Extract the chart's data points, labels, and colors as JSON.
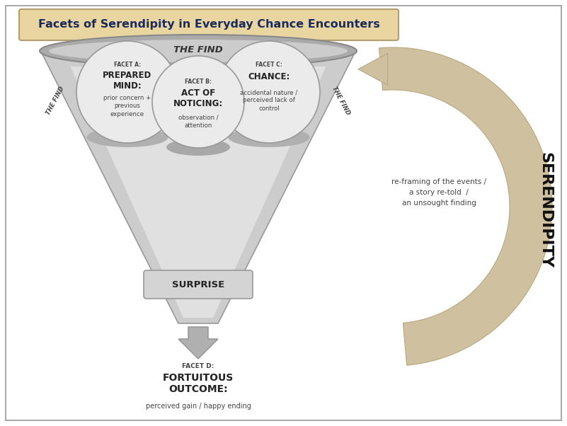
{
  "title": "Facets of Serendipity in Everyday Chance Encounters",
  "title_color": "#1a2a5e",
  "title_bg_color": "#e8d5a0",
  "title_border_color": "#b0a070",
  "background_color": "#ffffff",
  "funnel_outer_color": "#bbbbbb",
  "funnel_mid_color": "#cccccc",
  "funnel_inner_color": "#d8d8d8",
  "funnel_light_color": "#e0e0e0",
  "ellipse_rim_color": "#aaaaaa",
  "ellipse_rim_light": "#cccccc",
  "circle_face_color": "#ebebeb",
  "circle_edge_color": "#999999",
  "bump_color": "#b0b0b0",
  "surprise_face": "#d4d4d4",
  "surprise_edge": "#999999",
  "arrow_down_face": "#b0b0b0",
  "arrow_down_edge": "#909090",
  "arc_face": "#cfc0a0",
  "arc_edge": "#b8a880",
  "serendipity_color": "#111111",
  "text_dark": "#222222",
  "text_mid": "#444444",
  "border_color": "#aaaaaa",
  "the_find_text": "THE FIND",
  "the_find_side": "THE FIND",
  "surprise_text": "SURPRISE",
  "facet_a_label": "FACET A:",
  "facet_a_title": "PREPARED\nMIND:",
  "facet_a_sub": "prior concern +\nprevious\nexperience",
  "facet_b_label": "FACET B:",
  "facet_b_title": "ACT OF\nNOTICING:",
  "facet_b_sub": "observation /\nattention",
  "facet_c_label": "FACET C:",
  "facet_c_title": "CHANCE:",
  "facet_c_sub": "accidental nature /\nperceived lack of\ncontrol",
  "facet_d_label": "FACET D:",
  "facet_d_title": "FORTUITOUS\nOUTCOME:",
  "facet_d_sub": "perceived gain / happy ending",
  "reframing_text": "re-framing of the events /\na story re-told  /\nan unsought finding",
  "serendipity_text": "SERENDIPITY"
}
